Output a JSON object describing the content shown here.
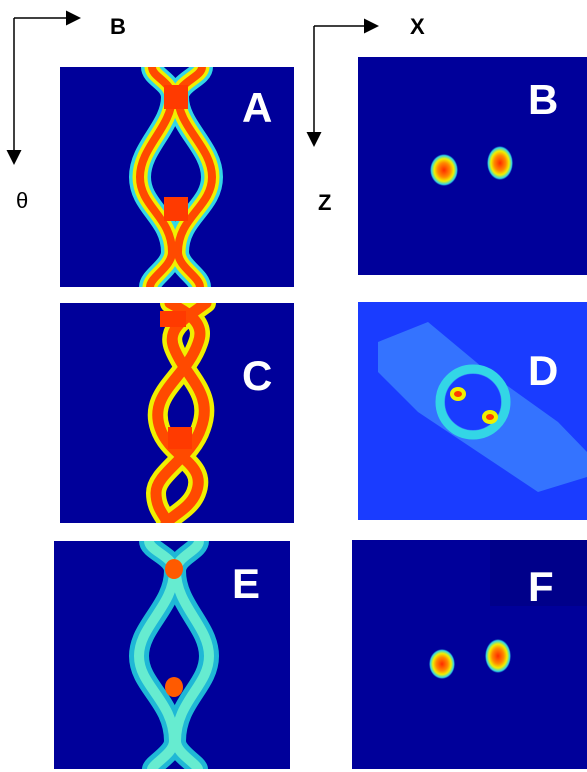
{
  "axes": {
    "left_horizontal": "B",
    "left_vertical": "θ",
    "right_horizontal": "X",
    "right_vertical": "Z"
  },
  "panels": [
    {
      "id": "A",
      "label": "A"
    },
    {
      "id": "B",
      "label": "B"
    },
    {
      "id": "C",
      "label": "C"
    },
    {
      "id": "D",
      "label": "D"
    },
    {
      "id": "E",
      "label": "E"
    },
    {
      "id": "F",
      "label": "F"
    }
  ],
  "colors": {
    "background_dark_blue": "#00009a",
    "background_blue_D": "#1a3cff",
    "cyan": "#33d6e6",
    "yellow": "#f0f000",
    "orange": "#ff5a00",
    "red": "#ff2a00"
  }
}
